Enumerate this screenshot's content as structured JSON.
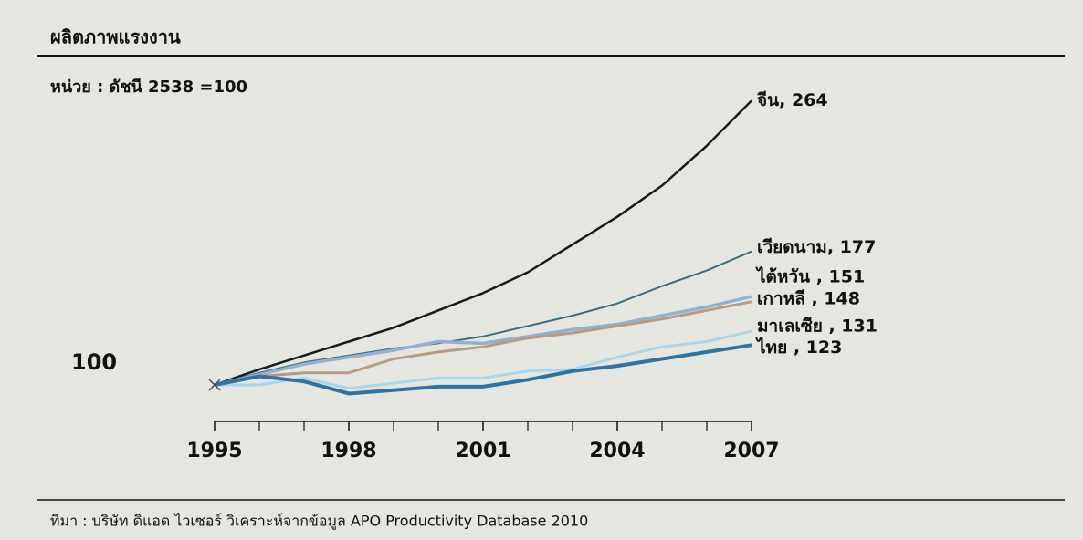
{
  "chart_data": {
    "type": "line",
    "title": "ผลิตภาพแรงงาน",
    "subtitle": "หน่วย : ดัชนี 2538 =100",
    "source": "ที่มา : บริษัท ดิแอด ไวเซอร์ วิเคราะห์จากข้อมูล APO Productivity Database 2010",
    "x": [
      1995,
      1996,
      1997,
      1998,
      1999,
      2000,
      2001,
      2002,
      2003,
      2004,
      2005,
      2006,
      2007
    ],
    "xlim": [
      1995,
      2007
    ],
    "xticks": [
      1995,
      1998,
      2001,
      2004,
      2007
    ],
    "xminor_ticks": [
      1996,
      1997,
      1999,
      2000,
      2002,
      2003,
      2005,
      2006
    ],
    "ylim": [
      80,
      270
    ],
    "yticks": [
      100
    ],
    "grid": false,
    "series": [
      {
        "name": "จีน, 264",
        "color": "#1a1a1a",
        "values": [
          100,
          109,
          117,
          125,
          133,
          143,
          153,
          165,
          181,
          197,
          215,
          238,
          264
        ]
      },
      {
        "name": "เวียดนาม, 177",
        "color": "#3f6e80",
        "values": [
          100,
          107,
          113,
          117,
          121,
          124,
          128,
          134,
          140,
          147,
          157,
          166,
          177
        ]
      },
      {
        "name": "ไต้หวัน , 151",
        "color": "#8fb2d4",
        "values": [
          100,
          106,
          112,
          116,
          120,
          125,
          124,
          128,
          132,
          135,
          140,
          145,
          151
        ]
      },
      {
        "name": "เกาหลี , 148",
        "color": "#b99a80",
        "values": [
          100,
          105,
          107,
          107,
          115,
          119,
          122,
          127,
          130,
          134,
          138,
          143,
          148
        ]
      },
      {
        "name": "มาเลเซีย , 131",
        "color": "#aad6e8",
        "values": [
          100,
          100,
          104,
          98,
          101,
          104,
          104,
          108,
          109,
          116,
          122,
          125,
          131
        ]
      },
      {
        "name": "ไทย , 123",
        "color": "#2f73a5",
        "values": [
          100,
          105,
          102,
          95,
          97,
          99,
          99,
          103,
          108,
          111,
          115,
          119,
          123
        ]
      }
    ]
  }
}
